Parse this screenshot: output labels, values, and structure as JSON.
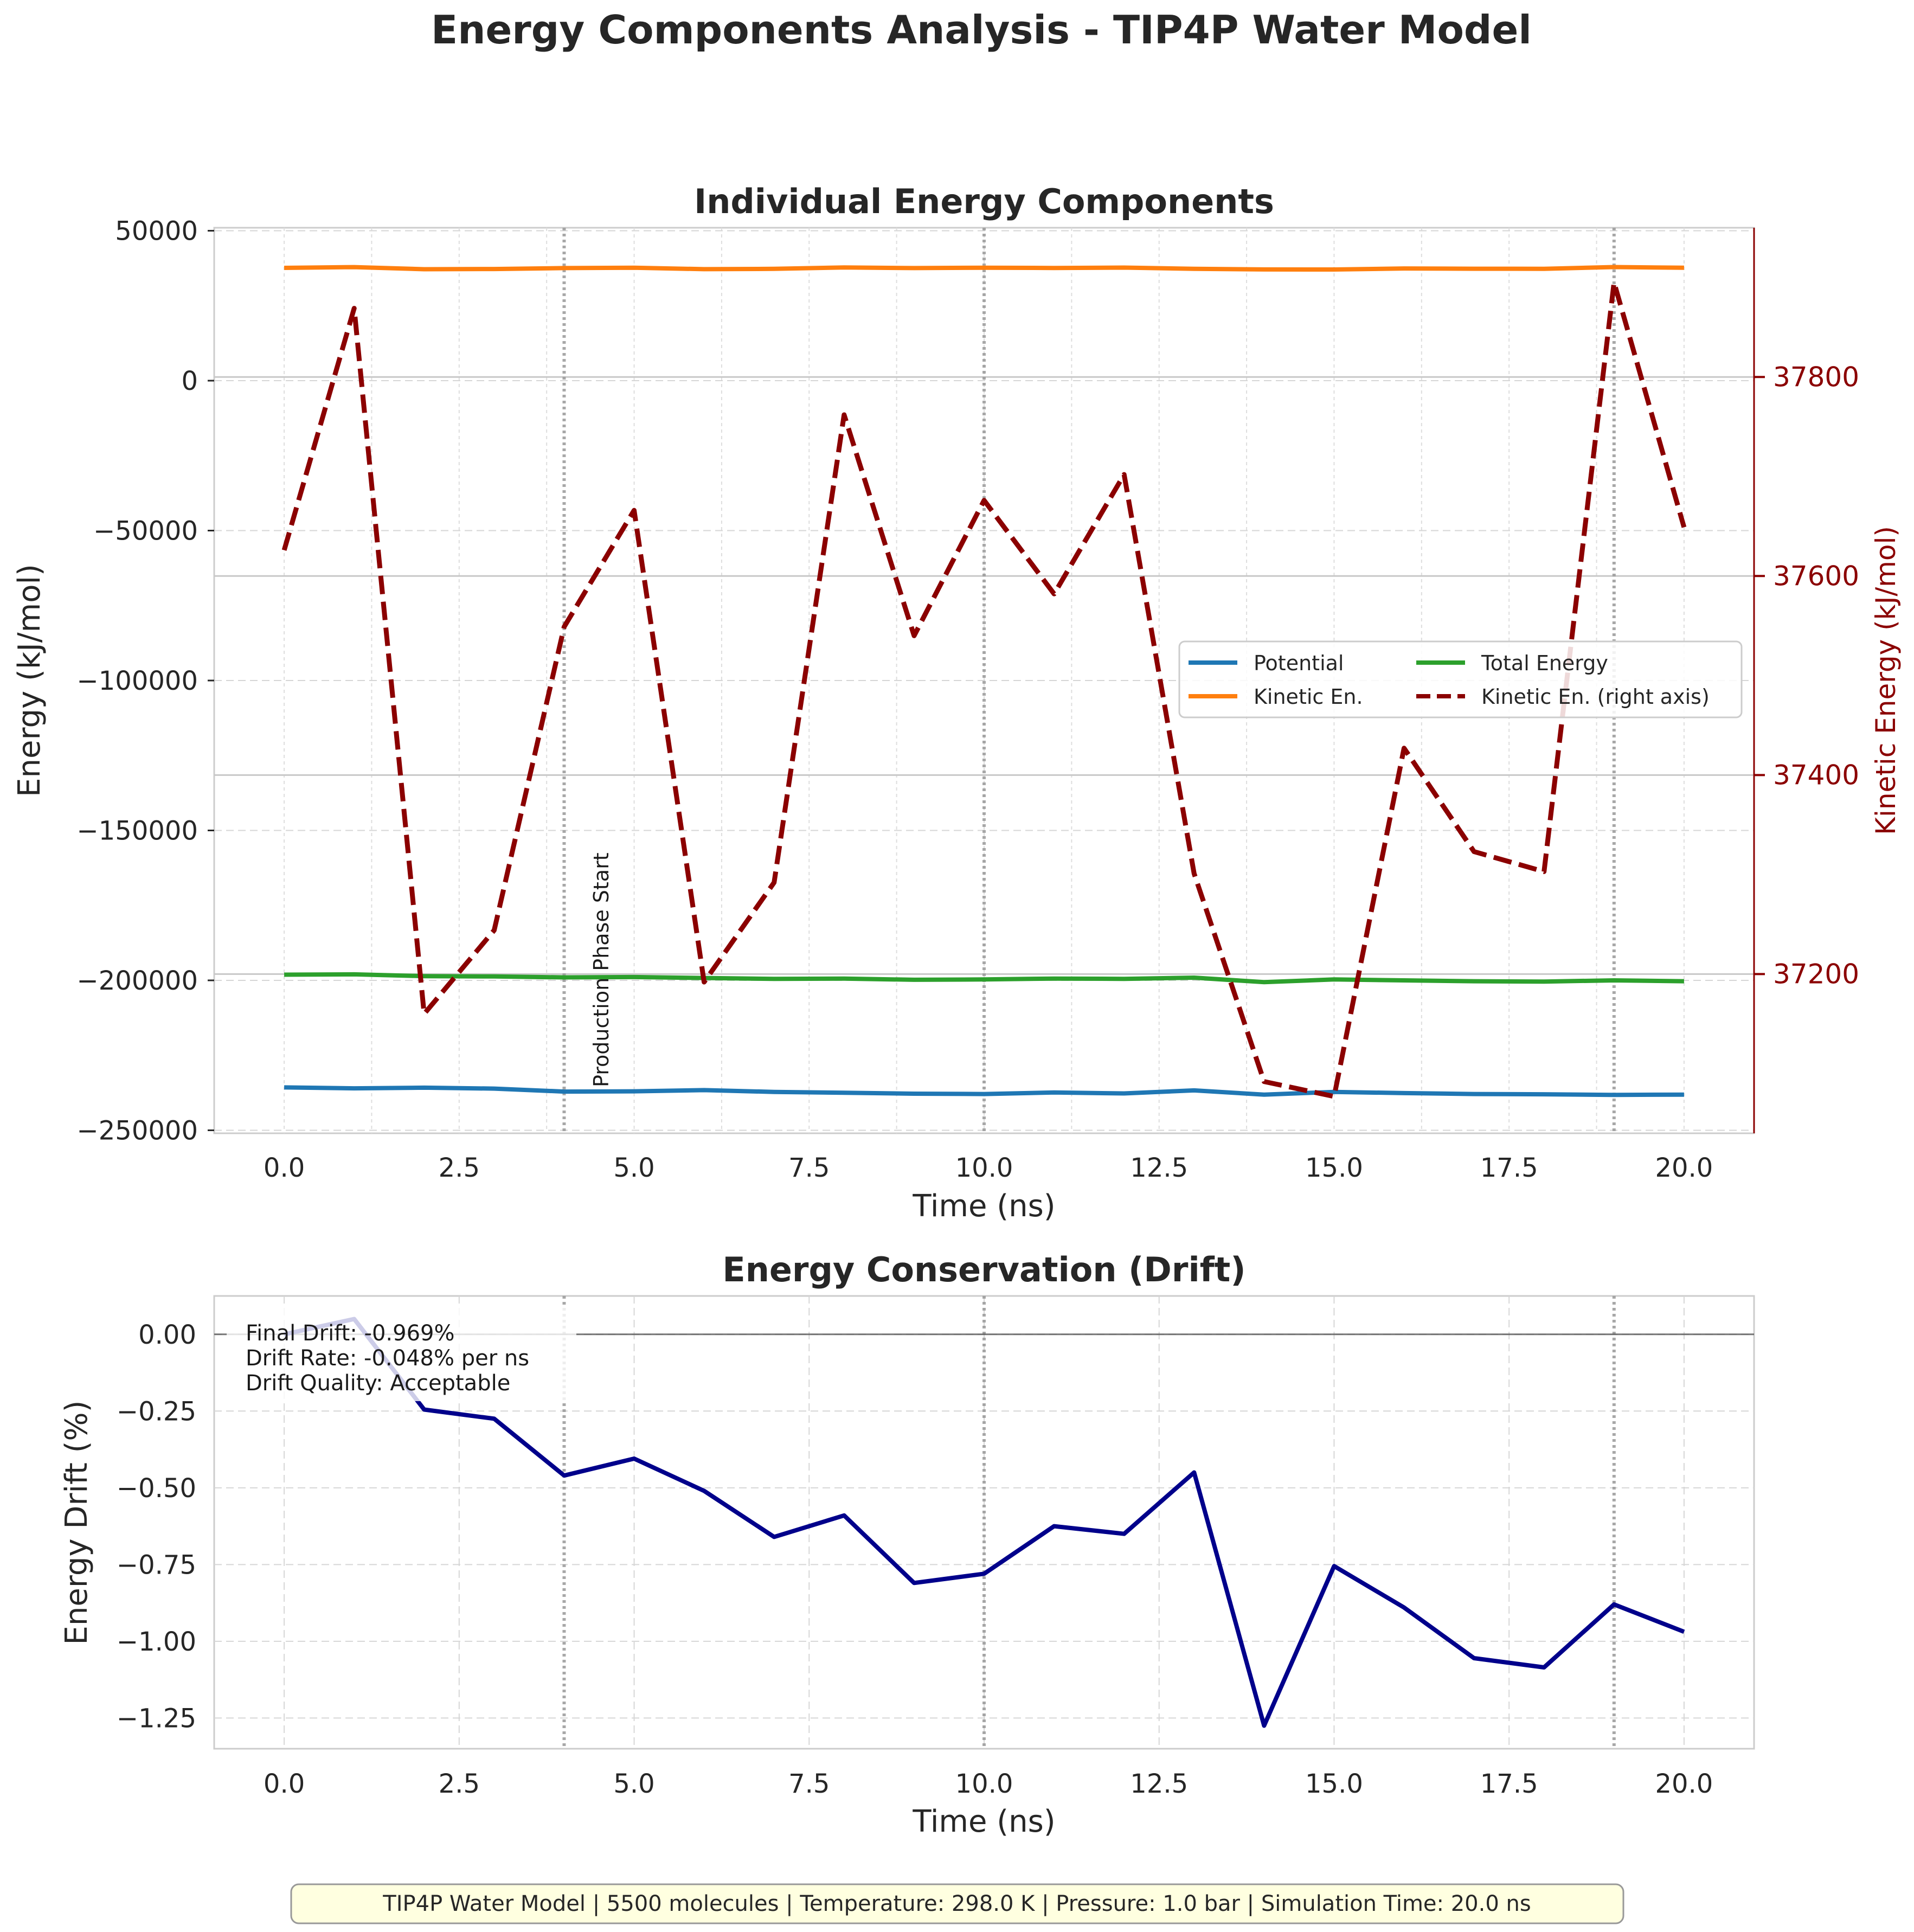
{
  "figure": {
    "suptitle": "Energy Components Analysis - TIP4P Water Model",
    "footer": "TIP4P Water Model | 5500 molecules | Temperature: 298.0 K | Pressure: 1.0 bar | Simulation Time: 20.0 ns"
  },
  "colors": {
    "potential": "#1f77b4",
    "kinetic": "#ff7f0e",
    "total": "#2ca02c",
    "kinetic_right": "#8b0000",
    "drift": "#00008b",
    "footer_bg": "#ffffe0"
  },
  "chart_data": [
    {
      "type": "line",
      "title": "Individual Energy Components",
      "xlabel": "Time (ns)",
      "ylabel": "Energy (kJ/mol)",
      "y2label": "Kinetic Energy (kJ/mol)",
      "xlim": [
        -1,
        21
      ],
      "ylim": [
        -251000,
        51000
      ],
      "y2lim": [
        37040,
        37950
      ],
      "xticks": [
        "0.0",
        "2.5",
        "5.0",
        "7.5",
        "10.0",
        "12.5",
        "15.0",
        "17.5",
        "20.0"
      ],
      "yticks": [
        "50000",
        "0",
        "−50000",
        "−100000",
        "−150000",
        "−200000",
        "−250000"
      ],
      "y2ticks": [
        "37800",
        "37600",
        "37400",
        "37200"
      ],
      "x": [
        0,
        1,
        2,
        3,
        4,
        5,
        6,
        7,
        8,
        9,
        10,
        11,
        12,
        13,
        14,
        15,
        16,
        17,
        18,
        19,
        20
      ],
      "series": [
        {
          "name": "Potential",
          "axis": "left",
          "style": "solid",
          "values": [
            -235700,
            -236000,
            -235800,
            -236100,
            -237100,
            -237000,
            -236600,
            -237200,
            -237500,
            -237800,
            -237900,
            -237400,
            -237700,
            -236700,
            -238100,
            -237200,
            -237600,
            -237900,
            -238000,
            -238200,
            -238100
          ]
        },
        {
          "name": "Kinetic En.",
          "axis": "left",
          "style": "solid",
          "values": [
            37626,
            37869,
            37160,
            37244,
            37549,
            37666,
            37192,
            37292,
            37762,
            37540,
            37676,
            37582,
            37702,
            37301,
            37092,
            37077,
            37427,
            37323,
            37303,
            37895,
            37649
          ]
        },
        {
          "name": "Total Energy",
          "axis": "left",
          "style": "solid",
          "values": [
            -198100,
            -198000,
            -198600,
            -198700,
            -199000,
            -198900,
            -199200,
            -199500,
            -199400,
            -199800,
            -199700,
            -199400,
            -199500,
            -199100,
            -200600,
            -199700,
            -200000,
            -200300,
            -200400,
            -200000,
            -200300
          ]
        },
        {
          "name": "Kinetic En. (right axis)",
          "axis": "right",
          "style": "dashed",
          "values": [
            37626,
            37869,
            37160,
            37244,
            37549,
            37666,
            37192,
            37292,
            37762,
            37540,
            37676,
            37582,
            37702,
            37301,
            37092,
            37077,
            37427,
            37323,
            37303,
            37895,
            37649
          ]
        }
      ],
      "vlines": [
        4,
        10,
        19
      ],
      "annotation": "Production Phase Start",
      "legend": "center-right",
      "grid": true
    },
    {
      "type": "line",
      "title": "Energy Conservation (Drift)",
      "xlabel": "Time (ns)",
      "ylabel": "Energy Drift (%)",
      "xlim": [
        -1,
        21
      ],
      "ylim": [
        -1.35,
        0.125
      ],
      "xticks": [
        "0.0",
        "2.5",
        "5.0",
        "7.5",
        "10.0",
        "12.5",
        "15.0",
        "17.5",
        "20.0"
      ],
      "yticks": [
        "0.00",
        "−0.25",
        "−0.50",
        "−0.75",
        "−1.00",
        "−1.25"
      ],
      "x": [
        0,
        1,
        2,
        3,
        4,
        5,
        6,
        7,
        8,
        9,
        10,
        11,
        12,
        13,
        14,
        15,
        16,
        17,
        18,
        19,
        20
      ],
      "series": [
        {
          "name": "Energy Drift",
          "values": [
            0.0,
            0.05,
            -0.245,
            -0.275,
            -0.46,
            -0.405,
            -0.51,
            -0.66,
            -0.59,
            -0.81,
            -0.78,
            -0.625,
            -0.65,
            -0.45,
            -1.275,
            -0.755,
            -0.89,
            -1.055,
            -1.085,
            -0.88,
            -0.969
          ]
        }
      ],
      "vlines": [
        4,
        10,
        19
      ],
      "stats": [
        "Final Drift: -0.969%",
        "Drift Rate: -0.048% per ns",
        "Drift Quality: Acceptable"
      ],
      "grid": true
    }
  ]
}
